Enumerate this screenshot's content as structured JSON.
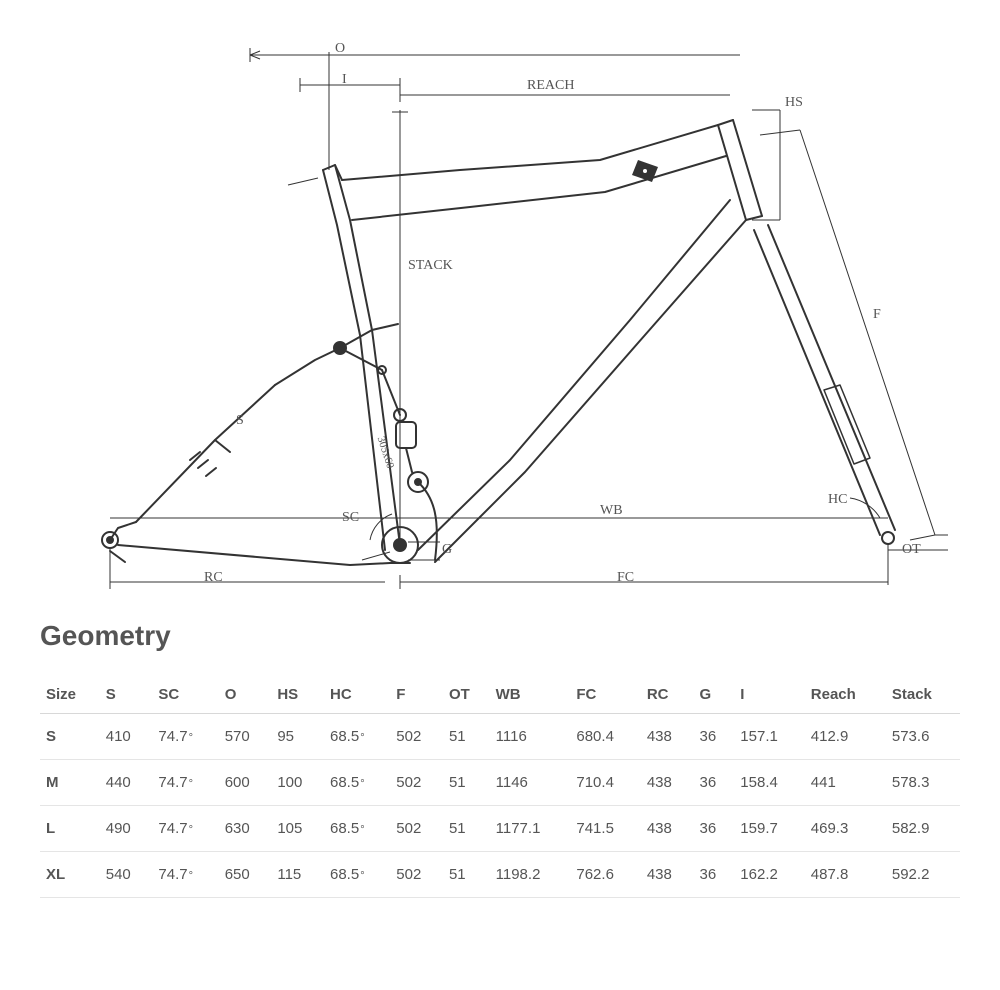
{
  "diagram": {
    "type": "engineering-drawing",
    "subject": "bicycle-frame-geometry",
    "line_color": "#333333",
    "background_color": "#ffffff",
    "label_color": "#555555",
    "label_font": "serif",
    "label_fontsize": 14,
    "labels": {
      "O": "O",
      "I": "I",
      "REACH": "REACH",
      "HS": "HS",
      "STACK": "STACK",
      "F": "F",
      "S": "S",
      "SC": "SC",
      "WB": "WB",
      "HC": "HC",
      "OT": "OT",
      "FC": "FC",
      "RC": "RC",
      "G": "G",
      "shock_note": "305x60"
    }
  },
  "section_title": "Geometry",
  "table": {
    "columns": [
      "Size",
      "S",
      "SC",
      "O",
      "HS",
      "HC",
      "F",
      "OT",
      "WB",
      "FC",
      "RC",
      "G",
      "I",
      "Reach",
      "Stack"
    ],
    "rows": [
      {
        "Size": "S",
        "S": "410",
        "SC": "74.7",
        "O": "570",
        "HS": "95",
        "HC": "68.5",
        "F": "502",
        "OT": "51",
        "WB": "1116",
        "FC": "680.4",
        "RC": "438",
        "G": "36",
        "I": "157.1",
        "Reach": "412.9",
        "Stack": "573.6"
      },
      {
        "Size": "M",
        "S": "440",
        "SC": "74.7",
        "O": "600",
        "HS": "100",
        "HC": "68.5",
        "F": "502",
        "OT": "51",
        "WB": "1146",
        "FC": "710.4",
        "RC": "438",
        "G": "36",
        "I": "158.4",
        "Reach": "441",
        "Stack": "578.3"
      },
      {
        "Size": "L",
        "S": "490",
        "SC": "74.7",
        "O": "630",
        "HS": "105",
        "HC": "68.5",
        "F": "502",
        "OT": "51",
        "WB": "1177.1",
        "FC": "741.5",
        "RC": "438",
        "G": "36",
        "I": "159.7",
        "Reach": "469.3",
        "Stack": "582.9"
      },
      {
        "Size": "XL",
        "S": "540",
        "SC": "74.7",
        "O": "650",
        "HS": "115",
        "HC": "68.5",
        "F": "502",
        "OT": "51",
        "WB": "1198.2",
        "FC": "762.6",
        "RC": "438",
        "G": "36",
        "I": "162.2",
        "Reach": "487.8",
        "Stack": "592.2"
      }
    ],
    "degree_columns": [
      "SC",
      "HC"
    ],
    "header_border_color": "#d8d8d8",
    "row_border_color": "#e5e5e5",
    "text_color": "#555555",
    "header_fontsize": 15,
    "cell_fontsize": 15
  }
}
